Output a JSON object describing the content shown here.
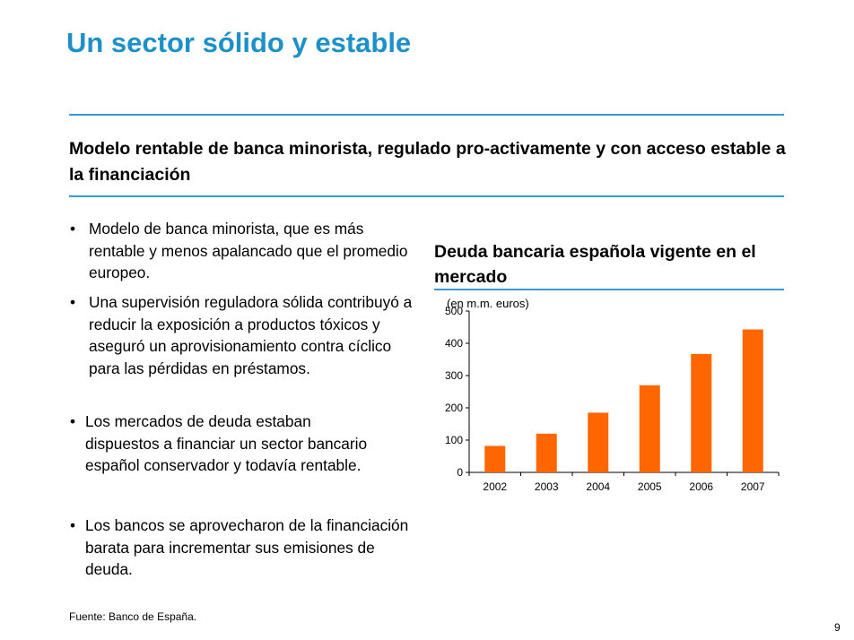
{
  "header": {
    "title": "Un sector sólido y estable",
    "subtitle": "Modelo rentable de banca minorista, regulado pro-activamente y con acceso estable a la financiación"
  },
  "bullets": [
    "Modelo de banca minorista, que es más rentable y menos apalancado que el promedio europeo.",
    "Una supervisión reguladora sólida contribuyó a reducir la exposición a productos tóxicos y aseguró un aprovisionamiento contra cíclico para las pérdidas en préstamos.",
    "Los mercados de deuda estaban dispuestos a financiar un sector bancario español conservador y todavía rentable.",
    "Los bancos se aprovecharon de la financiación barata para incrementar sus emisiones de deuda."
  ],
  "bullet_symbol": "•",
  "chart_heading": {
    "title": "Deuda bancaria española vigente en el mercado",
    "unit": "(en m.m. euros)"
  },
  "chart_data": {
    "type": "bar",
    "categories": [
      "2002",
      "2003",
      "2004",
      "2005",
      "2006",
      "2007"
    ],
    "values": [
      82,
      120,
      185,
      270,
      367,
      443
    ],
    "ylim": [
      0,
      500
    ],
    "yticks": [
      0,
      100,
      200,
      300,
      400,
      500
    ],
    "bar_color": "#FF6600",
    "grid": false,
    "legend": "none"
  },
  "footer": {
    "source": "Fuente: Banco de España.",
    "page_number": "9"
  },
  "colors": {
    "title": "#1E90C8",
    "rule": "#3A9AD9",
    "bar": "#FF6600"
  }
}
